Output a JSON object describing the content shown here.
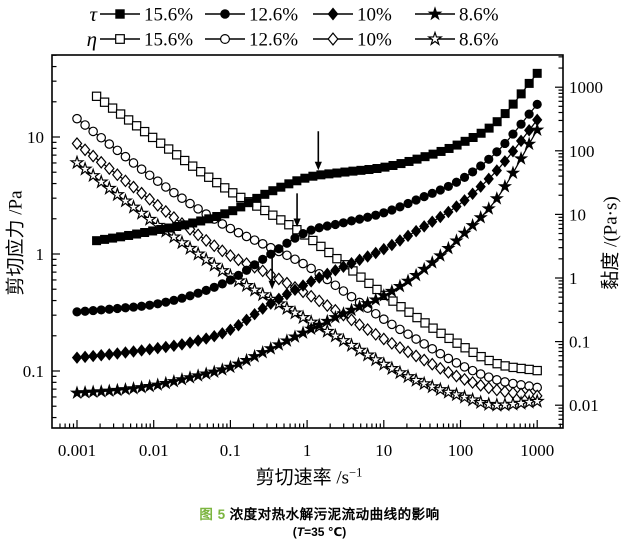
{
  "figure": {
    "caption": {
      "fig_label": "图 5",
      "title": "浓度对热水解污泥流动曲线的影响",
      "condition_prefix": "(",
      "condition_var": "T",
      "condition_rest": "=35 ℃)"
    },
    "colors": {
      "ink": "#000000",
      "caption_accent": "#7cb540",
      "background": "#ffffff"
    }
  },
  "chart_data": {
    "type": "line",
    "title": "浓度对热水解污泥流动曲线的影响 (T=35 ℃)",
    "grid": false,
    "x_axis": {
      "label": "剪切速率 /s⁻¹",
      "label_main": "剪切速率 /s",
      "label_sup": "−1",
      "scale": "log",
      "range": [
        0.001,
        1000
      ],
      "tick_values": [
        0.001,
        0.01,
        0.1,
        1,
        10,
        100,
        1000
      ],
      "tick_labels": [
        "0.001",
        "0.01",
        "0.1",
        "1",
        "10",
        "100",
        "1000"
      ]
    },
    "y_axis_left": {
      "label": "剪切应力 /Pa",
      "quantity": "shear stress",
      "scale": "log",
      "range": [
        0.03,
        50
      ],
      "tick_values": [
        0.1,
        1,
        10
      ],
      "tick_labels": [
        "0.1",
        "1",
        "10"
      ]
    },
    "y_axis_right": {
      "label": "黏度 /(Pa·s)",
      "quantity": "viscosity",
      "scale": "log",
      "range": [
        0.004,
        3000
      ],
      "tick_values": [
        0.01,
        0.1,
        1,
        10,
        100,
        1000
      ],
      "tick_labels": [
        "0.01",
        "0.1",
        "1",
        "10",
        "100",
        "1000"
      ]
    },
    "legend": {
      "position": "top",
      "rows": [
        {
          "variable": "τ",
          "items": [
            {
              "label": "15.6%",
              "marker": "square",
              "fill": "filled"
            },
            {
              "label": "12.6%",
              "marker": "circle",
              "fill": "filled"
            },
            {
              "label": "10%",
              "marker": "diamond",
              "fill": "filled"
            },
            {
              "label": "8.6%",
              "marker": "star",
              "fill": "filled"
            }
          ]
        },
        {
          "variable": "η",
          "items": [
            {
              "label": "15.6%",
              "marker": "square",
              "fill": "open"
            },
            {
              "label": "12.6%",
              "marker": "circle",
              "fill": "open"
            },
            {
              "label": "10%",
              "marker": "diamond",
              "fill": "open"
            },
            {
              "label": "8.6%",
              "marker": "star",
              "fill": "open"
            }
          ]
        }
      ]
    },
    "series": [
      {
        "name": "eta-15.6%",
        "variable": "η",
        "concentration": "15.6%",
        "axis": "right",
        "marker": "square",
        "fill": "open",
        "points": [
          [
            0.0018,
            720
          ],
          [
            0.005,
            290
          ],
          [
            0.01,
            158
          ],
          [
            0.03,
            61
          ],
          [
            0.1,
            23
          ],
          [
            0.3,
            11
          ],
          [
            1,
            4.5
          ],
          [
            3,
            1.67
          ],
          [
            10,
            0.55
          ],
          [
            30,
            0.22
          ],
          [
            100,
            0.088
          ],
          [
            300,
            0.045
          ],
          [
            1000,
            0.035
          ]
        ]
      },
      {
        "name": "eta-12.6%",
        "variable": "η",
        "concentration": "12.6%",
        "axis": "right",
        "marker": "circle",
        "fill": "open",
        "points": [
          [
            0.001,
            320
          ],
          [
            0.003,
            113
          ],
          [
            0.01,
            37
          ],
          [
            0.03,
            14.7
          ],
          [
            0.1,
            6.0
          ],
          [
            0.3,
            3.2
          ],
          [
            1,
            1.55
          ],
          [
            3,
            0.62
          ],
          [
            10,
            0.225
          ],
          [
            30,
            0.1
          ],
          [
            100,
            0.043
          ],
          [
            300,
            0.025
          ],
          [
            1000,
            0.019
          ]
        ]
      },
      {
        "name": "eta-10%",
        "variable": "η",
        "concentration": "10%",
        "axis": "right",
        "marker": "diamond",
        "fill": "open",
        "points": [
          [
            0.001,
            130
          ],
          [
            0.003,
            46.7
          ],
          [
            0.01,
            15.5
          ],
          [
            0.03,
            5.8
          ],
          [
            0.1,
            2.25
          ],
          [
            0.3,
            1.2
          ],
          [
            1,
            0.56
          ],
          [
            3,
            0.26
          ],
          [
            10,
            0.11
          ],
          [
            30,
            0.055
          ],
          [
            100,
            0.027
          ],
          [
            300,
            0.0173
          ],
          [
            1000,
            0.014
          ]
        ]
      },
      {
        "name": "eta-8.6%",
        "variable": "η",
        "concentration": "8.6%",
        "axis": "right",
        "marker": "star",
        "fill": "open",
        "points": [
          [
            0.001,
            65
          ],
          [
            0.003,
            22.7
          ],
          [
            0.01,
            7.5
          ],
          [
            0.03,
            2.9
          ],
          [
            0.1,
            1.08
          ],
          [
            0.3,
            0.5
          ],
          [
            1,
            0.22
          ],
          [
            3,
            0.103
          ],
          [
            10,
            0.044
          ],
          [
            30,
            0.023
          ],
          [
            100,
            0.014
          ],
          [
            300,
            0.01
          ],
          [
            1000,
            0.0115
          ]
        ]
      },
      {
        "name": "tau-8.6%",
        "variable": "τ",
        "concentration": "8.6%",
        "axis": "left",
        "marker": "star",
        "fill": "filled",
        "points": [
          [
            0.001,
            0.065
          ],
          [
            0.003,
            0.068
          ],
          [
            0.01,
            0.075
          ],
          [
            0.03,
            0.088
          ],
          [
            0.1,
            0.108
          ],
          [
            0.3,
            0.15
          ],
          [
            1,
            0.22
          ],
          [
            3,
            0.31
          ],
          [
            10,
            0.44
          ],
          [
            30,
            0.7
          ],
          [
            100,
            1.4
          ],
          [
            300,
            3.0
          ],
          [
            1000,
            11.5
          ]
        ]
      },
      {
        "name": "tau-10%",
        "variable": "τ",
        "concentration": "10%",
        "axis": "left",
        "marker": "diamond",
        "fill": "filled",
        "points": [
          [
            0.001,
            0.13
          ],
          [
            0.003,
            0.14
          ],
          [
            0.01,
            0.155
          ],
          [
            0.03,
            0.175
          ],
          [
            0.1,
            0.225
          ],
          [
            0.3,
            0.36
          ],
          [
            1,
            0.56
          ],
          [
            3,
            0.78
          ],
          [
            10,
            1.1
          ],
          [
            30,
            1.65
          ],
          [
            100,
            2.7
          ],
          [
            300,
            5.2
          ],
          [
            1000,
            14
          ]
        ]
      },
      {
        "name": "tau-12.6%",
        "variable": "τ",
        "concentration": "12.6%",
        "axis": "left",
        "marker": "circle",
        "fill": "filled",
        "points": [
          [
            0.001,
            0.32
          ],
          [
            0.003,
            0.34
          ],
          [
            0.01,
            0.37
          ],
          [
            0.03,
            0.44
          ],
          [
            0.1,
            0.6
          ],
          [
            0.3,
            0.95
          ],
          [
            1,
            1.55
          ],
          [
            3,
            1.85
          ],
          [
            10,
            2.25
          ],
          [
            30,
            3.0
          ],
          [
            100,
            4.3
          ],
          [
            300,
            7.5
          ],
          [
            1000,
            19
          ]
        ]
      },
      {
        "name": "tau-15.6%",
        "variable": "τ",
        "concentration": "15.6%",
        "axis": "left",
        "marker": "square",
        "fill": "filled",
        "points": [
          [
            0.0018,
            1.3
          ],
          [
            0.005,
            1.45
          ],
          [
            0.01,
            1.58
          ],
          [
            0.03,
            1.82
          ],
          [
            0.1,
            2.3
          ],
          [
            0.3,
            3.3
          ],
          [
            1,
            4.5
          ],
          [
            3,
            5.0
          ],
          [
            10,
            5.5
          ],
          [
            30,
            6.6
          ],
          [
            100,
            8.8
          ],
          [
            300,
            13.5
          ],
          [
            1000,
            35
          ]
        ]
      }
    ],
    "annotations": {
      "arrows_axis": "left",
      "arrows": [
        {
          "x": 1.4,
          "y_from": 11.2,
          "y_to": 5.2
        },
        {
          "x": 0.74,
          "y_from": 3.3,
          "y_to": 1.7
        },
        {
          "x": 0.35,
          "y_from": 0.97,
          "y_to": 0.5
        }
      ]
    }
  }
}
